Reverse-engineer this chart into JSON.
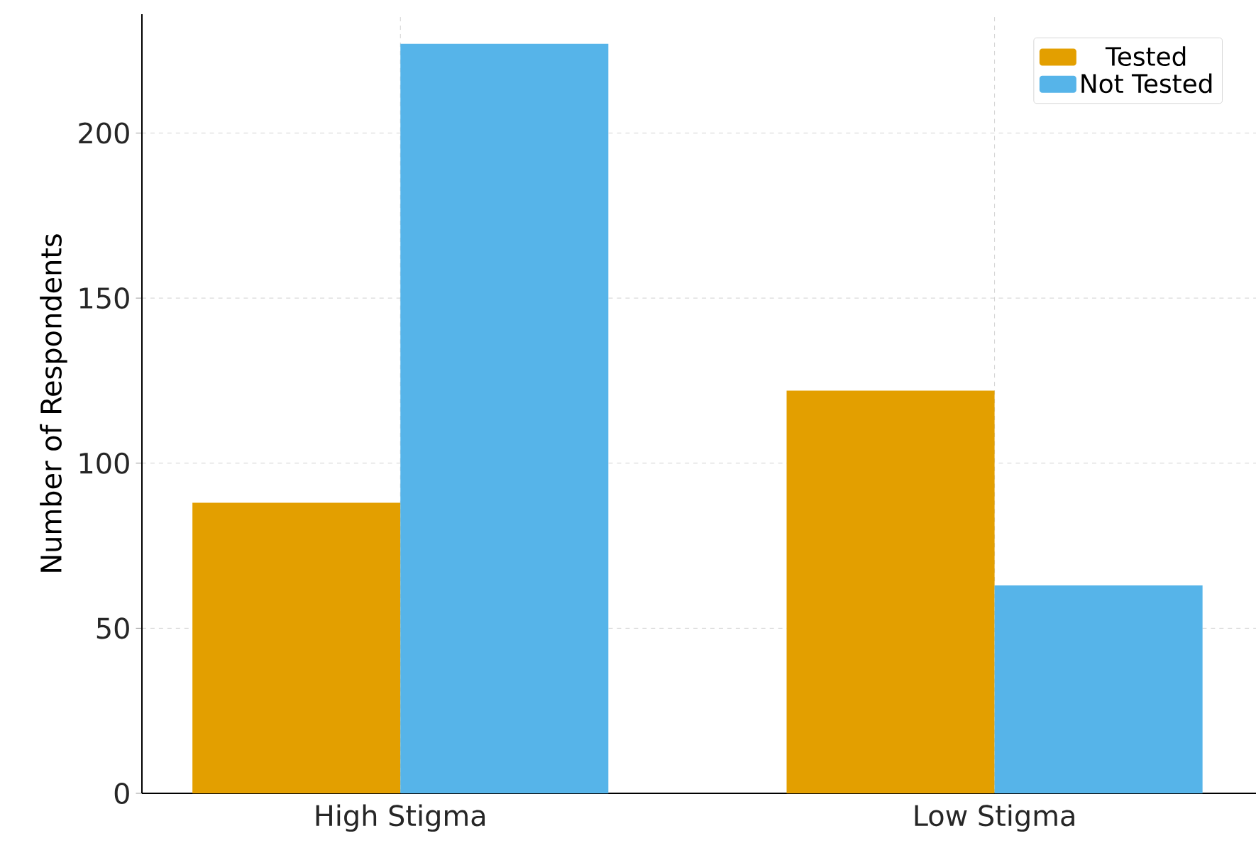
{
  "chart_data": {
    "type": "bar",
    "ylabel": "Number of Respondents",
    "categories": [
      "High Stigma",
      "Low Stigma"
    ],
    "series": [
      {
        "name": "Tested",
        "color": "#e39f00",
        "values": [
          88,
          122
        ]
      },
      {
        "name": "Not Tested",
        "color": "#56b4e9",
        "values": [
          227,
          63
        ]
      }
    ],
    "ylim": [
      0,
      236
    ],
    "yticks": [
      0,
      50,
      100,
      150,
      200
    ],
    "grid": true,
    "legend": "top right"
  }
}
